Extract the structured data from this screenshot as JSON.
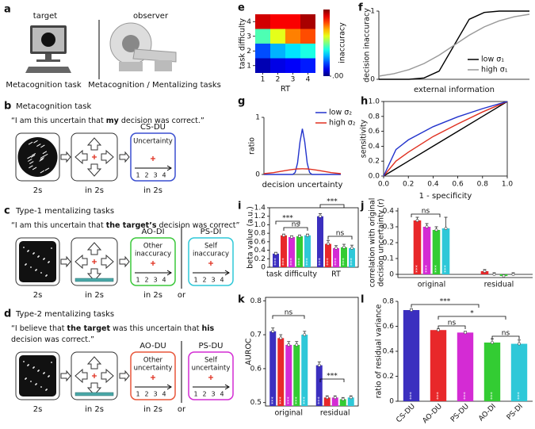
{
  "figure": {
    "a": {
      "letter": "a",
      "target": "target",
      "observer": "observer",
      "caption_left": "Metacognition task",
      "caption_right": "Metacognition / Mentalizing tasks"
    },
    "tasks": [
      {
        "letter": "b",
        "title": "Metacognition task",
        "quote": [
          [
            {
              "text": "“I am this uncertain that ",
              "bold": false
            },
            {
              "text": "my",
              "bold": true
            },
            {
              "text": " decision was correct.”",
              "bold": false
            }
          ]
        ],
        "stimulus_caption": "2s",
        "cue_caption": "in 2s",
        "cue_bar": false,
        "ratings": [
          {
            "label": "CS-DU",
            "color": "#3a4fd0",
            "prompt": [
              "Uncertainty"
            ],
            "caption": "in 2s"
          }
        ],
        "scale": [
          1,
          2,
          3,
          4
        ]
      },
      {
        "letter": "c",
        "title": "Type-1 mentalizing tasks",
        "quote": [
          [
            {
              "text": "“I am this uncertain that ",
              "bold": false
            },
            {
              "text": "the target’s",
              "bold": true
            },
            {
              "text": " decision was correct”",
              "bold": false
            }
          ]
        ],
        "stimulus_caption": "2s",
        "cue_caption": "in 2s",
        "cue_bar": true,
        "ratings": [
          {
            "label": "AO-DI",
            "color": "#3ac83a",
            "prompt": [
              "Other",
              "inaccuracy"
            ],
            "caption": "in 2s"
          },
          {
            "label": "PS-DI",
            "color": "#2ec8d8",
            "prompt": [
              "Self",
              "inaccuracy"
            ]
          }
        ],
        "or": "or",
        "scale": [
          1,
          2,
          3,
          4
        ]
      },
      {
        "letter": "d",
        "title": "Type-2 mentalizing tasks",
        "quote": [
          [
            {
              "text": "“I believe that ",
              "bold": false
            },
            {
              "text": "the target",
              "bold": true
            },
            {
              "text": " was this uncertain that ",
              "bold": false
            },
            {
              "text": "his",
              "bold": true
            }
          ],
          [
            {
              "text": "decision was correct.”",
              "bold": false
            }
          ]
        ],
        "stimulus_caption": "2s",
        "cue_caption": "in 2s",
        "cue_bar": true,
        "ratings": [
          {
            "label": "AO-DU",
            "color": "#e8563a",
            "prompt": [
              "Other",
              "uncertainty"
            ],
            "caption": "in 2s"
          },
          {
            "label": "PS-DU",
            "color": "#d42bd4",
            "prompt": [
              "Self",
              "uncertainty"
            ]
          }
        ],
        "or": "or",
        "scale": [
          1,
          2,
          3,
          4
        ]
      }
    ]
  },
  "chart_data": [
    {
      "panel": "e",
      "type": "heatmap",
      "xlabel": "RT",
      "ylabel": "task difficulty",
      "x": [
        1,
        2,
        3,
        4
      ],
      "y": [
        1,
        2,
        3,
        4
      ],
      "xticks": [
        1,
        2,
        3,
        4
      ],
      "yticks": [
        1,
        2,
        3,
        4
      ],
      "xlim": [
        0.5,
        4.5
      ],
      "ylim": [
        0.5,
        4.5
      ],
      "values": [
        [
          0.05,
          0.1,
          0.12,
          0.15
        ],
        [
          0.2,
          0.3,
          0.35,
          0.4
        ],
        [
          0.45,
          0.6,
          0.75,
          0.8
        ],
        [
          0.92,
          0.88,
          0.88,
          0.96
        ]
      ],
      "colormap": "jet",
      "colorbar_label": "inaccuracy",
      "clim": [
        0,
        1
      ],
      "cticks": [
        {
          "value": 0,
          "label": ".00"
        }
      ]
    },
    {
      "panel": "f",
      "type": "line",
      "xlabel": "external information",
      "ylabel": "decision inaccuracy",
      "x": [
        -5,
        -4,
        -3,
        -2,
        -1,
        0,
        1,
        2,
        3,
        4,
        5
      ],
      "xlim": [
        -5,
        5
      ],
      "ylim": [
        0,
        1
      ],
      "yticks": [
        0,
        1
      ],
      "legend": "lower right",
      "series": [
        {
          "name": "low σ₁",
          "color": "#000000",
          "values": [
            0,
            0,
            0,
            0.02,
            0.12,
            0.5,
            0.88,
            0.98,
            1,
            1,
            1
          ]
        },
        {
          "name": "high σ₁",
          "color": "#999999",
          "values": [
            0.047,
            0.083,
            0.142,
            0.231,
            0.354,
            0.5,
            0.646,
            0.769,
            0.858,
            0.917,
            0.953
          ]
        }
      ]
    },
    {
      "panel": "g",
      "type": "line",
      "xlabel": "decision uncertainty",
      "ylabel": "ratio",
      "x": [
        -4,
        -3,
        -2,
        -1.5,
        -1,
        -0.75,
        -0.5,
        -0.25,
        0,
        0.25,
        0.5,
        0.75,
        1,
        1.5,
        2,
        3,
        4
      ],
      "xlim": [
        -4,
        4
      ],
      "ylim": [
        0,
        1
      ],
      "yticks": [
        0,
        1
      ],
      "legend": "upper right",
      "series": [
        {
          "name": "low σ₂",
          "color": "#2233cc",
          "values": [
            0,
            0,
            0,
            0,
            0,
            0.035,
            0.2,
            0.57,
            0.8,
            0.57,
            0.2,
            0.035,
            0,
            0,
            0,
            0,
            0
          ]
        },
        {
          "name": "high σ₂",
          "color": "#e03020",
          "values": [
            0.0135,
            0.032,
            0.061,
            0.0755,
            0.088,
            0.093,
            0.097,
            0.099,
            0.1,
            0.099,
            0.097,
            0.093,
            0.088,
            0.0755,
            0.061,
            0.032,
            0.0135
          ]
        }
      ]
    },
    {
      "panel": "h",
      "type": "line",
      "xlabel": "1 - specificity",
      "ylabel": "sensitivity",
      "x": [
        0,
        0.1,
        0.2,
        0.4,
        0.6,
        0.8,
        1
      ],
      "xlim": [
        0,
        1
      ],
      "ylim": [
        0,
        1
      ],
      "xticks": [
        {
          "value": 0,
          "label": "0.0"
        },
        0.2,
        0.4,
        0.6,
        0.8,
        {
          "value": 1,
          "label": "1.0"
        }
      ],
      "yticks": [
        {
          "value": 0,
          "label": "0.0"
        },
        0.2,
        0.4,
        0.6,
        0.8,
        {
          "value": 1,
          "label": "1.0"
        }
      ],
      "series": [
        {
          "color": "#000000",
          "values": [
            0,
            0.1,
            0.2,
            0.4,
            0.6,
            0.8,
            1
          ]
        },
        {
          "color": "#e03020",
          "values": [
            0,
            0.2,
            0.32,
            0.53,
            0.7,
            0.86,
            1
          ]
        },
        {
          "color": "#2233cc",
          "values": [
            0,
            0.355,
            0.485,
            0.662,
            0.795,
            0.904,
            1
          ]
        }
      ]
    },
    {
      "panel": "i",
      "type": "bar",
      "ylabel": "beta value (a.u.)",
      "categories": [
        "task difficulty",
        "RT"
      ],
      "ylim": [
        0,
        1.4
      ],
      "yticks": [
        0,
        0.2,
        0.4,
        0.6,
        0.8,
        {
          "value": 1,
          "label": "1.0"
        },
        1.2,
        1.4
      ],
      "series": [
        {
          "color": "#3b2fbf",
          "values": [
            0.32,
            1.2
          ],
          "errors": [
            0.03,
            0.06
          ],
          "labels": [
            "***",
            "***"
          ]
        },
        {
          "color": "#e8282a",
          "values": [
            0.75,
            0.55
          ],
          "errors": [
            0.03,
            0.08
          ],
          "labels": [
            "***",
            "***"
          ]
        },
        {
          "color": "#d42bd4",
          "values": [
            0.71,
            0.45
          ],
          "errors": [
            0.03,
            0.06
          ],
          "labels": [
            "***",
            "***"
          ]
        },
        {
          "color": "#33cc33",
          "values": [
            0.73,
            0.47
          ],
          "errors": [
            0.03,
            0.07
          ],
          "labels": [
            "***",
            "***"
          ]
        },
        {
          "color": "#2ec8d8",
          "values": [
            0.75,
            0.45
          ],
          "errors": [
            0.03,
            0.07
          ],
          "labels": [
            "***",
            "***"
          ]
        }
      ],
      "annotations": [
        "***",
        "ns",
        "***",
        "ns"
      ]
    },
    {
      "panel": "j",
      "type": "bar",
      "ylabel": [
        "correlation with original",
        "decision uncertainty (r)"
      ],
      "categories": [
        "original",
        "residual"
      ],
      "ylim": [
        -0.02,
        0.42
      ],
      "yticks": [
        0,
        0.1,
        0.2,
        0.3,
        0.4
      ],
      "series": [
        {
          "color": "#e8282a",
          "values": [
            0.34,
            0.02
          ],
          "errors": [
            0.02,
            0.01
          ],
          "labels": [
            "***",
            null
          ]
        },
        {
          "color": "#d42bd4",
          "values": [
            0.3,
            0
          ],
          "errors": [
            0.02,
            0.01
          ],
          "labels": [
            "***",
            null
          ]
        },
        {
          "color": "#33cc33",
          "values": [
            0.28,
            -0.01
          ],
          "errors": [
            0.02,
            0.01
          ],
          "labels": [
            "***",
            null
          ]
        },
        {
          "color": "#2ec8d8",
          "values": [
            0.29,
            0
          ],
          "errors": [
            0.07,
            0.01
          ],
          "labels": [
            "***",
            null
          ]
        }
      ],
      "annotations": [
        "ns"
      ]
    },
    {
      "panel": "k",
      "type": "bar",
      "ylabel": "AUROC",
      "categories": [
        "original",
        "residual"
      ],
      "ylim": [
        0.49,
        0.81
      ],
      "yticks": [
        0.5,
        0.6,
        0.7,
        0.8
      ],
      "series": [
        {
          "color": "#3b2fbf",
          "values": [
            0.71,
            0.61
          ],
          "errors": [
            0.01,
            0.01
          ],
          "labels": [
            "***",
            "***"
          ]
        },
        {
          "color": "#e8282a",
          "values": [
            0.69,
            0.515
          ],
          "errors": [
            0.01,
            0.005
          ],
          "labels": [
            "***",
            null
          ]
        },
        {
          "color": "#d42bd4",
          "values": [
            0.67,
            0.515
          ],
          "errors": [
            0.01,
            0.005
          ],
          "labels": [
            "***",
            null
          ]
        },
        {
          "color": "#33cc33",
          "values": [
            0.67,
            0.51
          ],
          "errors": [
            0.01,
            0.005
          ],
          "labels": [
            "***",
            null
          ]
        },
        {
          "color": "#2ec8d8",
          "values": [
            0.7,
            0.515
          ],
          "errors": [
            0.01,
            0.005
          ],
          "labels": [
            "***",
            null
          ]
        }
      ],
      "annotations": [
        "ns",
        "***"
      ]
    },
    {
      "panel": "l",
      "type": "bar",
      "ylabel": "ratio of residual variance",
      "categories": [
        "CS-DU",
        "AO-DU",
        "PS-DU",
        "AO-DI",
        "PS-DI"
      ],
      "ylim": [
        0,
        0.8
      ],
      "yticks": [
        0,
        0.2,
        0.4,
        0.6,
        0.8
      ],
      "series": [
        {
          "colors": [
            "#3b2fbf",
            "#e8282a",
            "#d42bd4",
            "#33cc33",
            "#2ec8d8"
          ],
          "values": [
            0.73,
            0.57,
            0.55,
            0.47,
            0.46
          ],
          "errors": [
            0.01,
            0.01,
            0.01,
            0.03,
            0.03
          ],
          "labels": [
            "***",
            "***",
            "***",
            "***",
            "***"
          ]
        }
      ],
      "annotations": [
        "***",
        "*",
        "ns",
        "ns"
      ]
    }
  ]
}
